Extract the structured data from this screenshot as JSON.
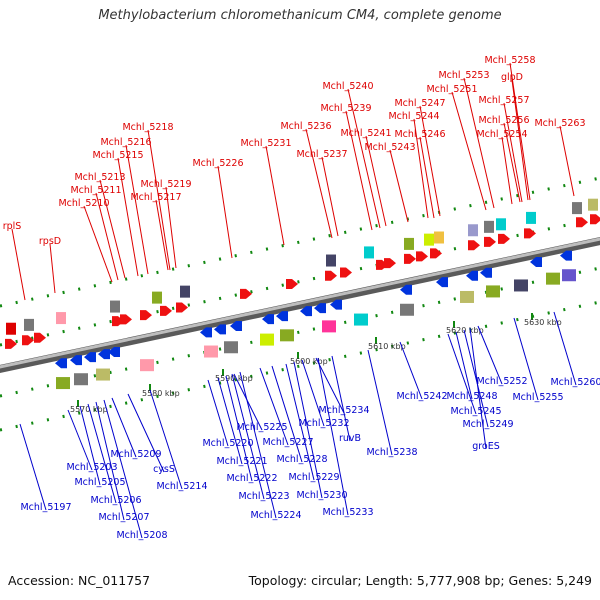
{
  "title": "Methylobacterium chloromethanicum CM4, complete genome",
  "footer": {
    "accession": "Accession: NC_011757",
    "summary": "Topology: circular; Length: 5,777,908 bp; Genes: 5,249"
  },
  "colors": {
    "forward_label": "#dd0000",
    "reverse_label": "#0000cc",
    "backbone": "#888888",
    "tick": "#118811"
  },
  "scale_ticks": [
    {
      "label": "5570 kbp",
      "kb": 5570
    },
    {
      "label": "5580 kbp",
      "kb": 5580
    },
    {
      "label": "5590 kbp",
      "kb": 5590
    },
    {
      "label": "5600 kbp",
      "kb": 5600
    },
    {
      "label": "5610 kbp",
      "kb": 5610
    },
    {
      "label": "5620 kbp",
      "kb": 5620
    },
    {
      "label": "5630 kbp",
      "kb": 5630
    }
  ],
  "forward_genes": [
    "rplS",
    "rpsD",
    "Mchl_5210",
    "Mchl_5211",
    "Mchl_5213",
    "Mchl_5215",
    "Mchl_5216",
    "Mchl_5218",
    "Mchl_5219",
    "Mchl_5217",
    "Mchl_5226",
    "Mchl_5231",
    "Mchl_5236",
    "Mchl_5237",
    "Mchl_5239",
    "Mchl_5240",
    "Mchl_5241",
    "Mchl_5243",
    "Mchl_5244",
    "Mchl_5246",
    "Mchl_5247",
    "Mchl_5251",
    "Mchl_5253",
    "Mchl_5254",
    "Mchl_5256",
    "Mchl_5257",
    "glpD",
    "Mchl_5258",
    "Mchl_5263"
  ],
  "reverse_genes": [
    "Mchl_5197",
    "Mchl_5203",
    "Mchl_5205",
    "Mchl_5206",
    "Mchl_5207",
    "Mchl_5208",
    "Mchl_5209",
    "cysS",
    "Mchl_5214",
    "Mchl_5220",
    "Mchl_5221",
    "Mchl_5222",
    "Mchl_5223",
    "Mchl_5224",
    "Mchl_5225",
    "Mchl_5227",
    "Mchl_5228",
    "Mchl_5229",
    "Mchl_5230",
    "Mchl_5232",
    "Mchl_5234",
    "ruvB",
    "Mchl_5233",
    "Mchl_5238",
    "Mchl_5242",
    "Mchl_5245",
    "Mchl_5248",
    "Mchl_5249",
    "groES",
    "Mchl_5252",
    "Mchl_5255",
    "Mchl_5260"
  ]
}
